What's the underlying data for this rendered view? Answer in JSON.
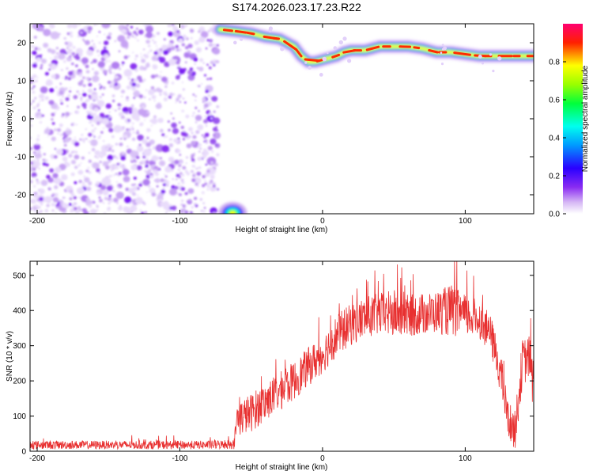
{
  "title": "S174.2026.023.17.23.R22",
  "chart_data": [
    {
      "type": "heatmap",
      "xlabel": "Height of straight line (km)",
      "ylabel": "Frequency (Hz)",
      "xlim": [
        -205,
        148
      ],
      "ylim": [
        -25,
        25
      ],
      "xticks": [
        -200,
        -100,
        0,
        100
      ],
      "yticks": [
        -20,
        -10,
        0,
        10,
        20
      ],
      "colorbar": {
        "label": "Normalized spectral amplitude",
        "range": [
          0,
          1
        ],
        "ticks": [
          0.0,
          0.2,
          0.4,
          0.6,
          0.8
        ],
        "colors": [
          "#ffffff",
          "#c9a8f0",
          "#7a1bf2",
          "#2200ff",
          "#00ffff",
          "#00ff40",
          "#ffff00",
          "#ff2a00",
          "#ff0066"
        ]
      },
      "noise_region_x": [
        -205,
        -73
      ],
      "ridge": {
        "x": [
          -72,
          -60,
          -50,
          -40,
          -30,
          -20,
          -15,
          -10,
          -5,
          0,
          5,
          10,
          15,
          20,
          30,
          40,
          50,
          60,
          70,
          80,
          90,
          100,
          110,
          120,
          130,
          140,
          148
        ],
        "y": [
          23.5,
          23,
          22.5,
          21.5,
          21,
          19,
          16.5,
          15,
          15,
          15.5,
          16,
          16.5,
          17.5,
          18,
          18,
          19,
          19,
          19,
          18.5,
          17.5,
          17.5,
          17,
          16.5,
          16.5,
          16.5,
          16.5,
          16.5
        ]
      },
      "lower_blob": {
        "x": -63,
        "y": -24
      }
    },
    {
      "type": "line",
      "xlabel": "Height of straight line (km)",
      "ylabel": "SNR (10 * v/v)",
      "xlim": [
        -205,
        148
      ],
      "ylim": [
        0,
        540
      ],
      "xticks": [
        -200,
        -100,
        0,
        100
      ],
      "yticks": [
        0,
        100,
        200,
        300,
        400,
        500
      ],
      "color": "#e83030",
      "envelope": {
        "x": [
          -205,
          -80,
          -62,
          -60,
          -50,
          -40,
          -30,
          -20,
          -10,
          0,
          10,
          20,
          30,
          40,
          50,
          60,
          70,
          80,
          90,
          100,
          110,
          118,
          125,
          130,
          135,
          140,
          145,
          148
        ],
        "mean": [
          18,
          18,
          20,
          90,
          110,
          140,
          170,
          200,
          240,
          275,
          330,
          360,
          380,
          390,
          390,
          385,
          390,
          395,
          400,
          385,
          375,
          330,
          220,
          90,
          60,
          250,
          270,
          180
        ],
        "spread": [
          12,
          12,
          14,
          50,
          55,
          55,
          55,
          55,
          55,
          55,
          60,
          60,
          60,
          60,
          70,
          60,
          60,
          60,
          75,
          60,
          55,
          55,
          60,
          55,
          55,
          70,
          60,
          80
        ]
      }
    }
  ]
}
